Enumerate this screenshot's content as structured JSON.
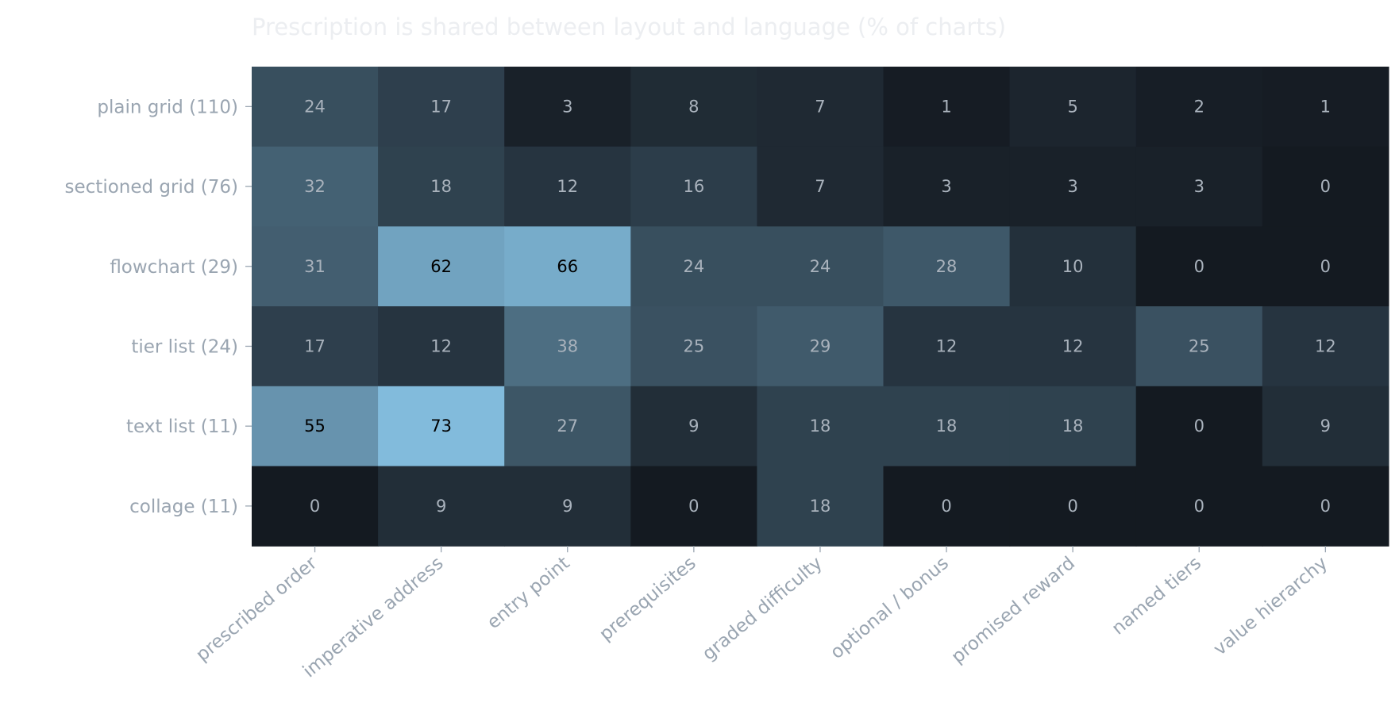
{
  "chart_data": {
    "type": "heatmap",
    "title": "Prescription is shared between layout and language  (% of charts)",
    "rows": [
      "plain grid  (110)",
      "sectioned grid  (76)",
      "flowchart  (29)",
      "tier list  (24)",
      "text list  (11)",
      "collage  (11)"
    ],
    "columns": [
      "prescribed order",
      "imperative address",
      "entry point",
      "prerequisites",
      "graded difficulty",
      "optional / bonus",
      "promised reward",
      "named tiers",
      "value hierarchy"
    ],
    "values": [
      [
        24,
        17,
        3,
        8,
        7,
        1,
        5,
        2,
        1
      ],
      [
        32,
        18,
        12,
        16,
        7,
        3,
        3,
        3,
        0
      ],
      [
        31,
        62,
        66,
        24,
        24,
        28,
        10,
        0,
        0
      ],
      [
        17,
        12,
        38,
        25,
        29,
        12,
        12,
        25,
        12
      ],
      [
        55,
        73,
        27,
        9,
        18,
        18,
        18,
        0,
        9
      ],
      [
        0,
        9,
        9,
        0,
        18,
        0,
        0,
        0,
        0
      ]
    ],
    "color_scale": {
      "min": 0,
      "max": 73,
      "low_color": "#141a21",
      "high_color": "#82bbdc"
    },
    "colors": {
      "title": "#eceef1",
      "label": "#9aa5b1",
      "tick": "#9aa5b1",
      "value_text_light": "#a9b2bc",
      "value_text_dark": "#000000"
    }
  }
}
